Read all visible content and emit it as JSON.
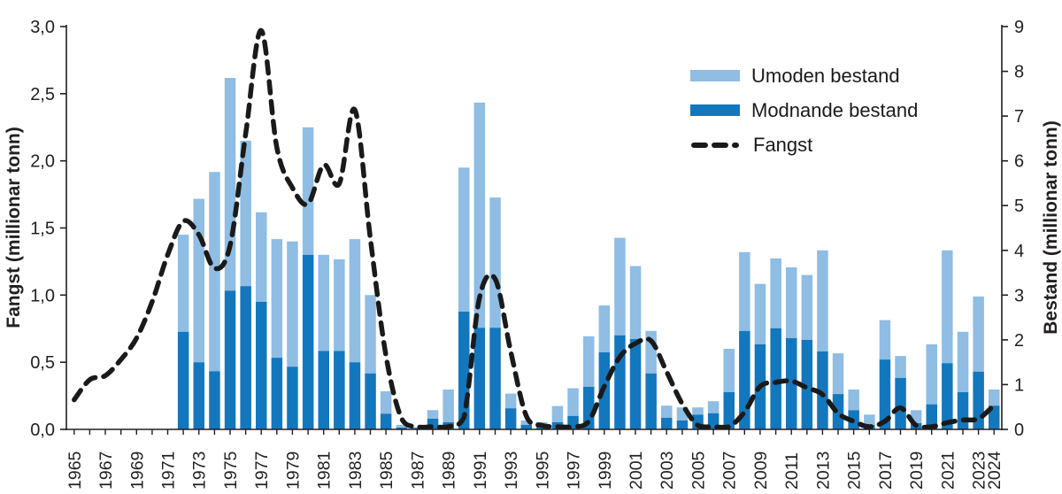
{
  "chart_data": {
    "type": "bar",
    "title": "",
    "left_axis": {
      "label": "Fangst (millionar tonn)",
      "min": 0,
      "max": 3,
      "step": 0.5,
      "tick_labels": [
        "0,0",
        "0,5",
        "1,0",
        "1,5",
        "2,0",
        "2,5",
        "3,0"
      ]
    },
    "right_axis": {
      "label": "Bestand (millionar tonn)",
      "min": 0,
      "max": 9,
      "step": 1,
      "tick_labels": [
        "0",
        "1",
        "2",
        "3",
        "4",
        "5",
        "6",
        "7",
        "8",
        "9"
      ]
    },
    "x_axis": {
      "start": 1965,
      "end": 2024,
      "labeled_years": [
        1965,
        1967,
        1969,
        1971,
        1973,
        1975,
        1977,
        1979,
        1981,
        1983,
        1985,
        1987,
        1989,
        1991,
        1993,
        1995,
        1997,
        1999,
        2001,
        2003,
        2005,
        2007,
        2009,
        2011,
        2013,
        2015,
        2017,
        2019,
        2021,
        2023,
        2024
      ]
    },
    "legend": [
      {
        "label": "Umoden bestand",
        "color": "#8fbde3",
        "type": "bar"
      },
      {
        "label": "Modnande bestand",
        "color": "#1377be",
        "type": "bar"
      },
      {
        "label": "Fangst",
        "color": "#1a1a1a",
        "type": "dashed-line"
      }
    ],
    "series": {
      "bar_years": [
        1972,
        1973,
        1974,
        1975,
        1976,
        1977,
        1978,
        1979,
        1980,
        1981,
        1982,
        1983,
        1984,
        1985,
        1986,
        1987,
        1988,
        1989,
        1990,
        1991,
        1992,
        1993,
        1994,
        1995,
        1996,
        1997,
        1998,
        1999,
        2000,
        2001,
        2002,
        2003,
        2004,
        2005,
        2006,
        2007,
        2008,
        2009,
        2010,
        2011,
        2012,
        2013,
        2014,
        2015,
        2016,
        2017,
        2018,
        2019,
        2020,
        2021,
        2022,
        2023,
        2024
      ],
      "modnande_bestand": [
        2.18,
        1.5,
        1.3,
        3.1,
        3.2,
        2.85,
        1.6,
        1.4,
        3.9,
        1.75,
        1.75,
        1.5,
        1.25,
        0.35,
        0.04,
        0.03,
        0.24,
        0.16,
        2.63,
        2.27,
        2.27,
        0.47,
        0.1,
        0.08,
        0.16,
        0.3,
        0.95,
        1.72,
        2.1,
        2.02,
        1.25,
        0.26,
        0.2,
        0.33,
        0.36,
        0.83,
        2.2,
        1.9,
        2.26,
        2.04,
        2.0,
        1.74,
        0.79,
        0.43,
        0.1,
        1.56,
        1.15,
        0.14,
        0.56,
        1.48,
        0.83,
        1.29,
        0.53
      ],
      "umoden_bestand": [
        2.17,
        3.65,
        4.45,
        4.75,
        3.25,
        2.0,
        2.65,
        2.8,
        2.85,
        2.15,
        2.05,
        2.75,
        1.75,
        0.5,
        0.06,
        0.02,
        0.19,
        0.73,
        3.22,
        5.03,
        2.91,
        0.33,
        0.1,
        0.08,
        0.36,
        0.62,
        1.13,
        1.05,
        2.18,
        1.63,
        0.95,
        0.27,
        0.29,
        0.16,
        0.27,
        0.97,
        1.76,
        1.35,
        1.56,
        1.58,
        1.45,
        2.26,
        0.91,
        0.46,
        0.23,
        0.88,
        0.49,
        0.29,
        1.34,
        2.52,
        1.35,
        1.68,
        0.36
      ],
      "fangst_years": [
        1965,
        1966,
        1967,
        1968,
        1969,
        1970,
        1971,
        1972,
        1973,
        1974,
        1975,
        1976,
        1977,
        1978,
        1979,
        1980,
        1981,
        1982,
        1983,
        1984,
        1985,
        1986,
        1987,
        1988,
        1989,
        1990,
        1991,
        1992,
        1993,
        1994,
        1995,
        1996,
        1997,
        1998,
        1999,
        2000,
        2001,
        2002,
        2003,
        2004,
        2005,
        2006,
        2007,
        2008,
        2009,
        2010,
        2011,
        2012,
        2013,
        2014,
        2015,
        2016,
        2017,
        2018,
        2019,
        2020,
        2021,
        2022,
        2023,
        2024
      ],
      "fangst": [
        0.22,
        0.37,
        0.4,
        0.52,
        0.68,
        0.95,
        1.3,
        1.55,
        1.45,
        1.2,
        1.37,
        2.2,
        2.97,
        2.1,
        1.8,
        1.68,
        1.97,
        1.83,
        2.38,
        1.42,
        0.55,
        0.08,
        0.02,
        0.02,
        0.02,
        0.09,
        0.98,
        1.12,
        0.58,
        0.1,
        0.03,
        0.02,
        0.02,
        0.06,
        0.32,
        0.54,
        0.64,
        0.66,
        0.43,
        0.19,
        0.03,
        0.02,
        0.02,
        0.13,
        0.32,
        0.35,
        0.36,
        0.31,
        0.26,
        0.12,
        0.06,
        0.02,
        0.06,
        0.16,
        0.03,
        0.02,
        0.05,
        0.07,
        0.08,
        0.18
      ]
    },
    "layout": {
      "grid": false,
      "legend_position": "upper-right-inside"
    }
  },
  "colors": {
    "umoden": "#8fbde3",
    "modnande": "#1377be",
    "fangst_line": "#1a1a1a",
    "axis_ink": "#231f20",
    "background": "#ffffff"
  }
}
